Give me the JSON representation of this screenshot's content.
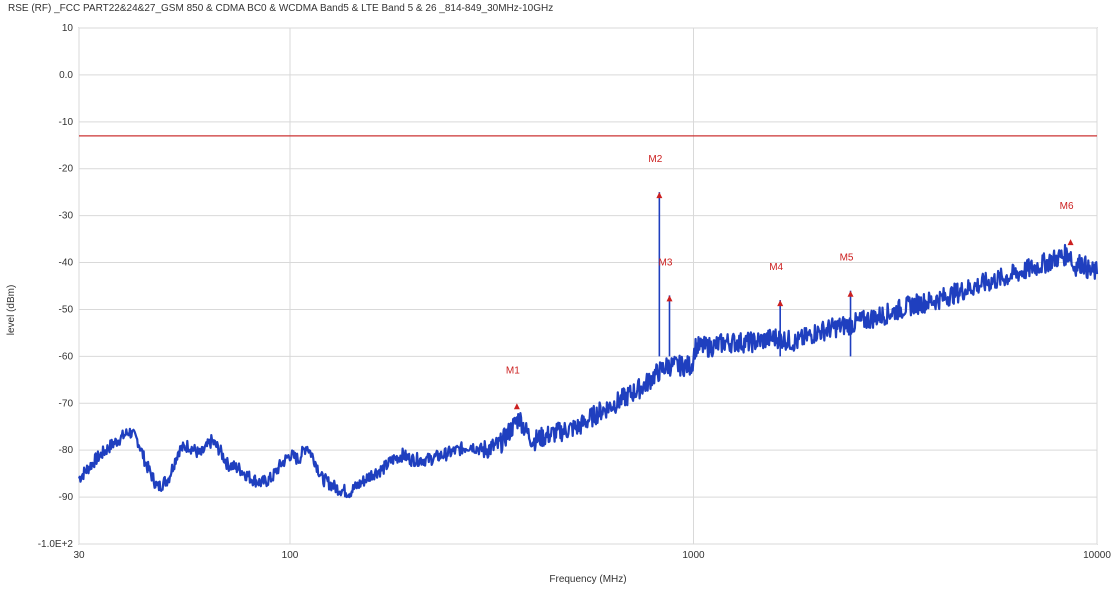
{
  "chart_data": {
    "type": "line",
    "title": "RSE (RF)  _FCC PART22&24&27_GSM 850 & CDMA BC0 & WCDMA Band5 & LTE Band 5 & 26 _814-849_30MHz-10GHz",
    "xlabel": "Frequency (MHz)",
    "ylabel": "level (dBm)",
    "x_scale": "log",
    "xlim": [
      30,
      10000
    ],
    "ylim": [
      -100,
      10
    ],
    "x_ticks": [
      {
        "value": 30,
        "label": "30"
      },
      {
        "value": 100,
        "label": "100"
      },
      {
        "value": 1000,
        "label": "1000"
      },
      {
        "value": 10000,
        "label": "10000"
      }
    ],
    "y_ticks": [
      {
        "value": 10,
        "label": "10"
      },
      {
        "value": 0,
        "label": "0.0"
      },
      {
        "value": -10,
        "label": "-10"
      },
      {
        "value": -20,
        "label": "-20"
      },
      {
        "value": -30,
        "label": "-30"
      },
      {
        "value": -40,
        "label": "-40"
      },
      {
        "value": -50,
        "label": "-50"
      },
      {
        "value": -60,
        "label": "-60"
      },
      {
        "value": -70,
        "label": "-70"
      },
      {
        "value": -80,
        "label": "-80"
      },
      {
        "value": -90,
        "label": "-90"
      },
      {
        "value": -100,
        "label": "-1.0E+2"
      }
    ],
    "grid": true,
    "limit_line": {
      "value": -13,
      "color": "#cc3333"
    },
    "series": [
      {
        "color": "#1f3fbf",
        "points": [
          [
            30,
            -86
          ],
          [
            33,
            -82
          ],
          [
            36,
            -79
          ],
          [
            40,
            -76
          ],
          [
            42,
            -78
          ],
          [
            44,
            -83
          ],
          [
            47,
            -88
          ],
          [
            50,
            -86
          ],
          [
            53,
            -80
          ],
          [
            56,
            -79
          ],
          [
            60,
            -81
          ],
          [
            64,
            -78
          ],
          [
            67,
            -80
          ],
          [
            70,
            -83
          ],
          [
            75,
            -84
          ],
          [
            80,
            -86
          ],
          [
            85,
            -87
          ],
          [
            90,
            -86
          ],
          [
            95,
            -83
          ],
          [
            100,
            -81
          ],
          [
            105,
            -82
          ],
          [
            110,
            -79
          ],
          [
            115,
            -82
          ],
          [
            120,
            -86
          ],
          [
            130,
            -88
          ],
          [
            140,
            -89
          ],
          [
            150,
            -87
          ],
          [
            160,
            -85
          ],
          [
            170,
            -84
          ],
          [
            180,
            -82
          ],
          [
            190,
            -81
          ],
          [
            200,
            -82
          ],
          [
            220,
            -82
          ],
          [
            240,
            -81
          ],
          [
            260,
            -80
          ],
          [
            280,
            -79
          ],
          [
            300,
            -80
          ],
          [
            330,
            -79
          ],
          [
            350,
            -76
          ],
          [
            370,
            -73
          ],
          [
            385,
            -76
          ],
          [
            400,
            -78
          ],
          [
            430,
            -77
          ],
          [
            470,
            -76
          ],
          [
            520,
            -75
          ],
          [
            580,
            -72
          ],
          [
            640,
            -70
          ],
          [
            700,
            -68
          ],
          [
            760,
            -66
          ],
          [
            800,
            -64
          ],
          [
            830,
            -63
          ],
          [
            860,
            -62
          ],
          [
            900,
            -62
          ],
          [
            950,
            -62
          ],
          [
            990,
            -62
          ],
          [
            1010,
            -58
          ],
          [
            1100,
            -58
          ],
          [
            1200,
            -57
          ],
          [
            1400,
            -57
          ],
          [
            1600,
            -56
          ],
          [
            1800,
            -57
          ],
          [
            2000,
            -55
          ],
          [
            2200,
            -54
          ],
          [
            2500,
            -53
          ],
          [
            3000,
            -51
          ],
          [
            3500,
            -49
          ],
          [
            4000,
            -48
          ],
          [
            5000,
            -45
          ],
          [
            6000,
            -43
          ],
          [
            7000,
            -41
          ],
          [
            8000,
            -39
          ],
          [
            8600,
            -38
          ],
          [
            8700,
            -41
          ],
          [
            9200,
            -40
          ],
          [
            9600,
            -42
          ],
          [
            10000,
            -42
          ]
        ]
      }
    ],
    "markers": [
      {
        "label": "M1",
        "x": 365,
        "y": -70
      },
      {
        "label": "M2",
        "x": 823,
        "y": -25
      },
      {
        "label": "M3",
        "x": 872,
        "y": -47
      },
      {
        "label": "M4",
        "x": 1640,
        "y": -48
      },
      {
        "label": "M5",
        "x": 2450,
        "y": -46
      },
      {
        "label": "M6",
        "x": 8600,
        "y": -35
      }
    ]
  }
}
